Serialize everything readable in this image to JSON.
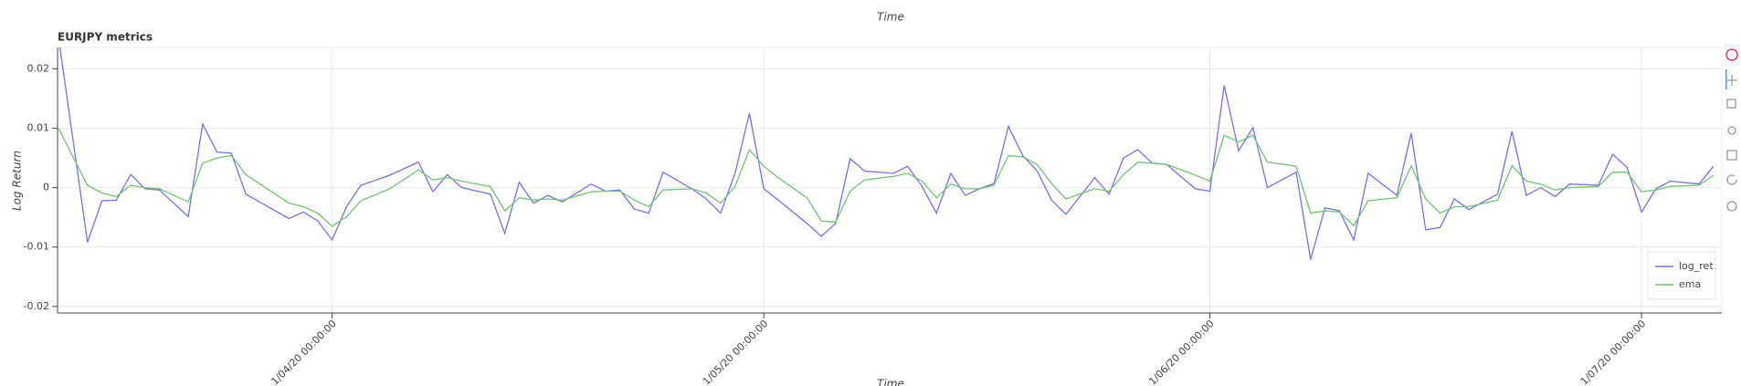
{
  "above_chart": {
    "x_axis_label": "Time"
  },
  "chart_data": {
    "type": "line",
    "title": "EURJPY metrics",
    "x_axis_label": "Time",
    "y_axis_label": "Log Return",
    "x": [
      "2020-03-13",
      "2020-03-15",
      "2020-03-16",
      "2020-03-17",
      "2020-03-18",
      "2020-03-19",
      "2020-03-20",
      "2020-03-22",
      "2020-03-23",
      "2020-03-24",
      "2020-03-25",
      "2020-03-26",
      "2020-03-29",
      "2020-03-30",
      "2020-03-31",
      "2020-04-01",
      "2020-04-02",
      "2020-04-03",
      "2020-04-05",
      "2020-04-07",
      "2020-04-08",
      "2020-04-09",
      "2020-04-10",
      "2020-04-12",
      "2020-04-13",
      "2020-04-14",
      "2020-04-15",
      "2020-04-16",
      "2020-04-17",
      "2020-04-19",
      "2020-04-20",
      "2020-04-21",
      "2020-04-22",
      "2020-04-23",
      "2020-04-24",
      "2020-04-26",
      "2020-04-27",
      "2020-04-28",
      "2020-04-29",
      "2020-04-30",
      "2020-05-01",
      "2020-05-02",
      "2020-05-04",
      "2020-05-05",
      "2020-05-06",
      "2020-05-07",
      "2020-05-08",
      "2020-05-10",
      "2020-05-11",
      "2020-05-12",
      "2020-05-13",
      "2020-05-14",
      "2020-05-15",
      "2020-05-16",
      "2020-05-17",
      "2020-05-18",
      "2020-05-19",
      "2020-05-20",
      "2020-05-21",
      "2020-05-22",
      "2020-05-24",
      "2020-05-25",
      "2020-05-26",
      "2020-05-27",
      "2020-05-28",
      "2020-05-29",
      "2020-05-31",
      "2020-06-01",
      "2020-06-02",
      "2020-06-03",
      "2020-06-04",
      "2020-06-05",
      "2020-06-07",
      "2020-06-08",
      "2020-06-09",
      "2020-06-10",
      "2020-06-11",
      "2020-06-12",
      "2020-06-14",
      "2020-06-15",
      "2020-06-16",
      "2020-06-17",
      "2020-06-18",
      "2020-06-19",
      "2020-06-21",
      "2020-06-22",
      "2020-06-23",
      "2020-06-24",
      "2020-06-25",
      "2020-06-26",
      "2020-06-28",
      "2020-06-29",
      "2020-06-30",
      "2020-07-01",
      "2020-07-02",
      "2020-07-03",
      "2020-07-05",
      "2020-07-06"
    ],
    "series": [
      {
        "name": "log_ret",
        "color": "#7272ea",
        "values": [
          0.025,
          -0.0092,
          -0.0022,
          -0.0021,
          0.0022,
          -0.0002,
          -0.0004,
          -0.0049,
          0.0107,
          0.006,
          0.0058,
          -0.0011,
          -0.0052,
          -0.0041,
          -0.0056,
          -0.0088,
          -0.0032,
          0.0004,
          0.0021,
          0.0043,
          -0.0007,
          0.0022,
          0,
          -0.0011,
          -0.0077,
          0.0009,
          -0.0026,
          -0.0013,
          -0.0024,
          0.0006,
          -0.0006,
          -0.0004,
          -0.0036,
          -0.0043,
          0.0026,
          -0.0002,
          -0.0019,
          -0.0043,
          0.0024,
          0.0125,
          -0.0002,
          -0.0021,
          -0.006,
          -0.0082,
          -0.006,
          0.0049,
          0.0028,
          0.0024,
          0.0036,
          0.0002,
          -0.0043,
          0.0024,
          -0.0013,
          -0.0002,
          0.0007,
          0.0103,
          0.0054,
          0.0028,
          -0.0021,
          -0.0045,
          0.0017,
          -0.0011,
          0.005,
          0.0064,
          0.0041,
          0.0039,
          -0.0002,
          -0.0006,
          0.0172,
          0.0062,
          0.0101,
          0,
          0.0026,
          -0.0121,
          -0.0034,
          -0.0039,
          -0.0088,
          0.0024,
          -0.0013,
          0.0092,
          -0.0071,
          -0.0067,
          -0.0019,
          -0.0037,
          -0.0011,
          0.0095,
          -0.0013,
          0,
          -0.0015,
          0.0006,
          0.0004,
          0.0056,
          0.0034,
          -0.0041,
          -0.0002,
          0.0011,
          0.0006,
          0.0036
        ]
      },
      {
        "name": "ema",
        "color": "#72c272",
        "values": [
          0.0099,
          0.0004,
          -0.0009,
          -0.0015,
          0.0004,
          0,
          -0.0002,
          -0.0024,
          0.0041,
          0.005,
          0.0054,
          0.0022,
          -0.0026,
          -0.0032,
          -0.0043,
          -0.0065,
          -0.0049,
          -0.0022,
          -0.0002,
          0.003,
          0.0013,
          0.0017,
          0.0011,
          0.0002,
          -0.0039,
          -0.0017,
          -0.0021,
          -0.0019,
          -0.0021,
          -0.0007,
          -0.0006,
          -0.0006,
          -0.0021,
          -0.0032,
          -0.0004,
          -0.0002,
          -0.0009,
          -0.0026,
          0.0002,
          0.0064,
          0.0036,
          0.0017,
          -0.0017,
          -0.0056,
          -0.0058,
          -0.0006,
          0.0013,
          0.0019,
          0.0024,
          0.0011,
          -0.0017,
          0.0006,
          -0.0002,
          -0.0002,
          0.0004,
          0.0054,
          0.0052,
          0.0039,
          0.0007,
          -0.0019,
          -0.0002,
          -0.0006,
          0.0022,
          0.0043,
          0.0041,
          0.0039,
          0.0021,
          0.0011,
          0.0088,
          0.0077,
          0.0088,
          0.0043,
          0.0036,
          -0.0043,
          -0.0039,
          -0.0041,
          -0.0064,
          -0.0022,
          -0.0017,
          0.0037,
          -0.0019,
          -0.0043,
          -0.0032,
          -0.0032,
          -0.0021,
          0.0037,
          0.0011,
          0.0006,
          -0.0004,
          0,
          0.0002,
          0.0026,
          0.0026,
          -0.0007,
          -0.0004,
          0.0002,
          0.0004,
          0.0021
        ]
      }
    ],
    "xlim": [
      "2020-03-12T22:00:00Z",
      "2020-07-06T14:00:00Z"
    ],
    "xticks": [
      {
        "value": "2020-04-01T00:00:00Z",
        "label": "1/04/20 00:00:00"
      },
      {
        "value": "2020-05-01T00:00:00Z",
        "label": "1/05/20 00:00:00"
      },
      {
        "value": "2020-06-01T00:00:00Z",
        "label": "1/06/20 00:00:00"
      },
      {
        "value": "2020-07-01T00:00:00Z",
        "label": "1/07/20 00:00:00"
      }
    ],
    "ylim": [
      -0.0211,
      0.0236
    ],
    "yticks": [
      -0.02,
      -0.01,
      0,
      0.01,
      0.02
    ],
    "grid": true,
    "legend": "bottom-right"
  }
}
